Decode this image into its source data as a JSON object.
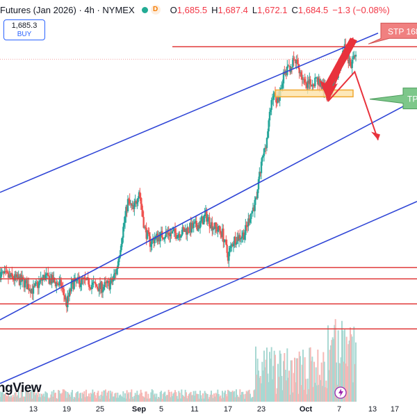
{
  "header": {
    "symbol": "Futures (Jan 2026) · 4h · NYMEX",
    "market_dot_color": "#22ab94",
    "delay_badge": "D",
    "open_label": "O",
    "open": "1,685.5",
    "high_label": "H",
    "high": "1,687.4",
    "low_label": "L",
    "low": "1,672.1",
    "close_label": "C",
    "close": "1,684.5",
    "change": "−1.3 (−0.08%)"
  },
  "buy_box": {
    "price": "1,685.3",
    "label": "BUY"
  },
  "logo": {
    "text": "ngView"
  },
  "colors": {
    "up": "#26a69a",
    "down": "#ef5350",
    "channel": "#2f45d6",
    "hline": "#e03a3a",
    "zone_fill": "#fde2a8",
    "zone_border": "#f0a830",
    "arrow": "#e8323c",
    "tp_fill": "#7dc78a",
    "stp_fill": "#f08080",
    "volume_up": "#a8d8d2",
    "volume_down": "#f6b8b6"
  },
  "annotations": {
    "stp_label": "STP 168",
    "tp_label": "TP"
  },
  "chart_data": {
    "type": "candlestick",
    "title": "",
    "x_ticks": [
      {
        "label": "13",
        "day": -18
      },
      {
        "label": "19",
        "day": -12
      },
      {
        "label": "25",
        "day": -6
      },
      {
        "label": "Sep",
        "day": 1,
        "bold": true
      },
      {
        "label": "5",
        "day": 5
      },
      {
        "label": "11",
        "day": 11
      },
      {
        "label": "17",
        "day": 17
      },
      {
        "label": "23",
        "day": 23
      },
      {
        "label": "Oct",
        "day": 31,
        "bold": true
      },
      {
        "label": "7",
        "day": 37
      },
      {
        "label": "13",
        "day": 43
      },
      {
        "label": "17",
        "day": 47
      }
    ],
    "x_range": [
      -24,
      51
    ],
    "y_range": [
      1534,
      1702
    ],
    "price_path": [
      [
        -24,
        1590
      ],
      [
        -20,
        1587
      ],
      [
        -18,
        1583
      ],
      [
        -16,
        1589
      ],
      [
        -13,
        1585
      ],
      [
        -12,
        1577
      ],
      [
        -11,
        1586
      ],
      [
        -9,
        1587
      ],
      [
        -6,
        1584
      ],
      [
        -4,
        1586
      ],
      [
        -3,
        1592
      ],
      [
        -2,
        1608
      ],
      [
        -1,
        1622
      ],
      [
        0,
        1618
      ],
      [
        1,
        1627
      ],
      [
        2,
        1610
      ],
      [
        3,
        1604
      ],
      [
        4,
        1606
      ],
      [
        6,
        1608
      ],
      [
        8,
        1608
      ],
      [
        10,
        1610
      ],
      [
        12,
        1612
      ],
      [
        13,
        1616
      ],
      [
        14,
        1612
      ],
      [
        16,
        1608
      ],
      [
        17,
        1598
      ],
      [
        18,
        1605
      ],
      [
        20,
        1608
      ],
      [
        21,
        1616
      ],
      [
        22,
        1622
      ],
      [
        23,
        1638
      ],
      [
        24,
        1650
      ],
      [
        25,
        1669
      ],
      [
        26,
        1667
      ],
      [
        27,
        1677
      ],
      [
        29,
        1684
      ],
      [
        30,
        1679
      ],
      [
        31,
        1672
      ],
      [
        33,
        1676
      ],
      [
        35,
        1668
      ],
      [
        37,
        1681
      ],
      [
        38,
        1689
      ],
      [
        39,
        1682
      ],
      [
        40,
        1684.5
      ]
    ],
    "channel_lines": [
      {
        "name": "upper",
        "start": [
          -24,
          1626
        ],
        "end": [
          44,
          1696
        ]
      },
      {
        "name": "middle",
        "start": [
          -24,
          1570
        ],
        "end": [
          51,
          1667
        ]
      },
      {
        "name": "lower",
        "start": [
          -24,
          1542
        ],
        "end": [
          51,
          1622
        ]
      }
    ],
    "horizontal_lines": [
      {
        "name": "stop",
        "y": 1690,
        "x_start": 7
      },
      {
        "name": "support-1",
        "y": 1593
      },
      {
        "name": "support-2",
        "y": 1588
      },
      {
        "name": "support-3",
        "y": 1577
      },
      {
        "name": "support-4",
        "y": 1566
      }
    ],
    "zone": {
      "x_start": 25.5,
      "x_end": 39.5,
      "y_low": 1668,
      "y_high": 1671
    },
    "projection": [
      [
        39.5,
        1694
      ],
      [
        35,
        1666
      ],
      [
        39.8,
        1679
      ],
      [
        44,
        1649
      ]
    ]
  }
}
